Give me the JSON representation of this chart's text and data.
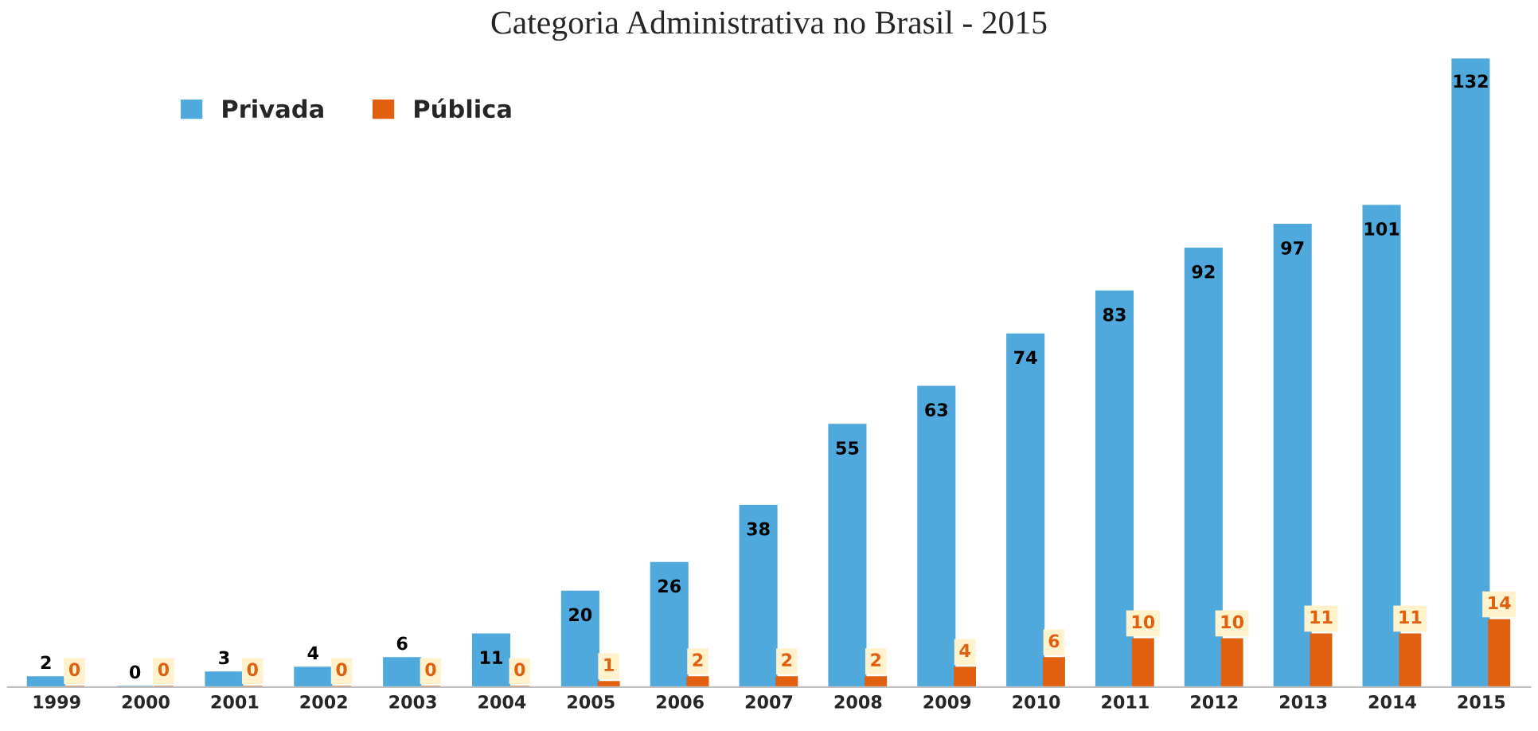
{
  "chart_data": {
    "type": "bar",
    "title": "Categoria Administrativa no Brasil - 2015",
    "categories": [
      "1999",
      "2000",
      "2001",
      "2002",
      "2003",
      "2004",
      "2005",
      "2006",
      "2007",
      "2008",
      "2009",
      "2010",
      "2011",
      "2012",
      "2013",
      "2014",
      "2015"
    ],
    "series": [
      {
        "name": "Privada",
        "color": "#4fa9dd",
        "values": [
          2,
          0,
          3,
          4,
          6,
          11,
          20,
          26,
          38,
          55,
          63,
          74,
          83,
          92,
          97,
          101,
          132
        ]
      },
      {
        "name": "Pública",
        "color": "#e0600f",
        "values": [
          0,
          0,
          0,
          0,
          0,
          0,
          1,
          2,
          2,
          2,
          4,
          6,
          10,
          10,
          11,
          11,
          14
        ]
      }
    ],
    "data_labels": true,
    "legend": "top left",
    "grid": false
  }
}
